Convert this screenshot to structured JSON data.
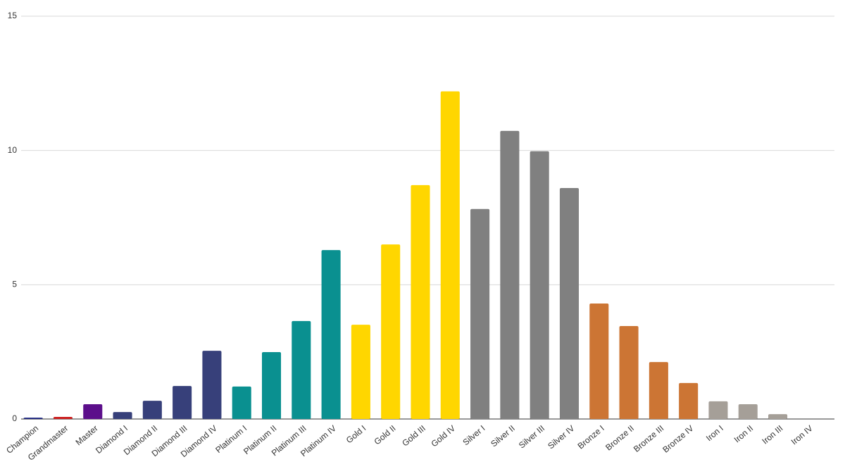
{
  "chart_data": {
    "type": "bar",
    "categories": [
      "Champion",
      "Grandmaster",
      "Master",
      "Diamond I",
      "Diamond II",
      "Diamond III",
      "Diamond IV",
      "Platinum I",
      "Platinum II",
      "Platinum III",
      "Platinum IV",
      "Gold I",
      "Gold II",
      "Gold III",
      "Gold IV",
      "Silver I",
      "Silver II",
      "Silver III",
      "Silver IV",
      "Bronze I",
      "Bronze II",
      "Bronze III",
      "Bronze IV",
      "Iron I",
      "Iron II",
      "Iron III",
      "Iron IV"
    ],
    "values": [
      0.05,
      0.08,
      0.55,
      0.26,
      0.68,
      1.23,
      2.54,
      1.21,
      2.49,
      3.65,
      6.29,
      3.51,
      6.5,
      8.71,
      12.2,
      7.82,
      10.73,
      9.97,
      8.6,
      4.3,
      3.46,
      2.12,
      1.34,
      0.66,
      0.55,
      0.18,
      0
    ],
    "colors": [
      "#1a237e",
      "#cc1f1f",
      "#5c0f8b",
      "#37407a",
      "#37407a",
      "#37407a",
      "#37407a",
      "#0a9090",
      "#0a9090",
      "#0a9090",
      "#0a9090",
      "#ffd600",
      "#ffd600",
      "#ffd600",
      "#ffd600",
      "#808080",
      "#808080",
      "#808080",
      "#808080",
      "#cc7534",
      "#cc7534",
      "#cc7534",
      "#cc7534",
      "#a59f98",
      "#a59f98",
      "#a59f98",
      "#a59f98"
    ],
    "ylim": [
      0,
      15
    ],
    "yticks": [
      0,
      5,
      10,
      15
    ],
    "grid": true
  }
}
